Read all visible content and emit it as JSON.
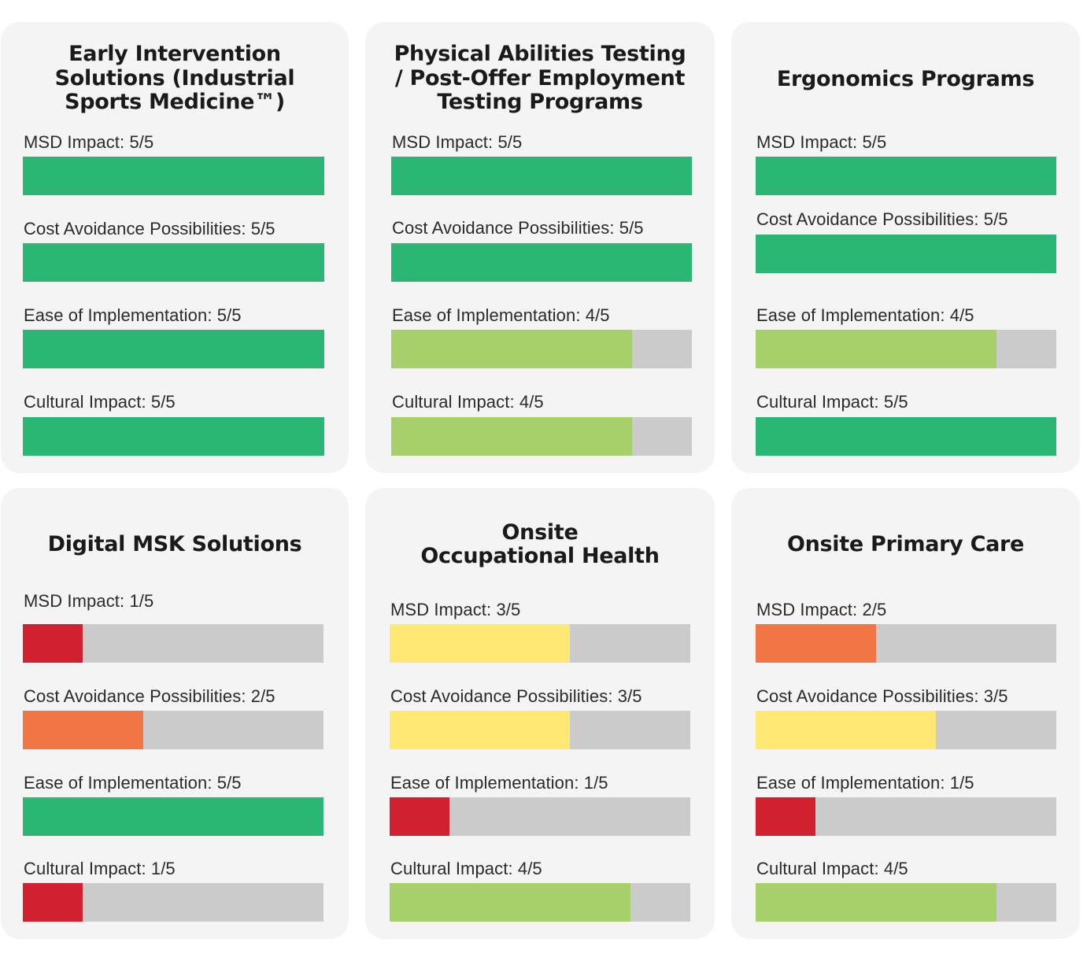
{
  "colors": {
    "score_1": "#d12131",
    "score_2": "#f27645",
    "score_3": "#fee773",
    "score_4": "#a5d06a",
    "score_5": "#2bb673",
    "track": "#cbcbcb",
    "card": "#f4f4f4"
  },
  "chart_data": {
    "type": "bar",
    "orientation": "horizontal",
    "scale_max": 5,
    "categories": [
      "MSD Impact",
      "Cost Avoidance Possibilities",
      "Ease of Implementation",
      "Cultural Impact"
    ],
    "cards": [
      {
        "title": "Early Intervention\nSolutions (Industrial\nSports Medicine™)",
        "metrics": [
          {
            "label": "MSD Impact: 5/5",
            "value": 5
          },
          {
            "label": "Cost Avoidance Possibilities: 5/5",
            "value": 5
          },
          {
            "label": "Ease of Implementation: 5/5",
            "value": 5
          },
          {
            "label": "Cultural Impact: 5/5",
            "value": 5
          }
        ]
      },
      {
        "title": "Physical Abilities Testing\n/ Post-Offer Employment\nTesting Programs",
        "metrics": [
          {
            "label": "MSD Impact: 5/5",
            "value": 5
          },
          {
            "label": "Cost Avoidance Possibilities: 5/5",
            "value": 5
          },
          {
            "label": "Ease of Implementation: 4/5",
            "value": 4
          },
          {
            "label": "Cultural Impact: 4/5",
            "value": 4
          }
        ]
      },
      {
        "title": "Ergonomics Programs",
        "metrics": [
          {
            "label": "MSD Impact: 5/5",
            "value": 5
          },
          {
            "label": "Cost Avoidance Possibilities: 5/5",
            "value": 5
          },
          {
            "label": "Ease of Implementation: 4/5",
            "value": 4
          },
          {
            "label": "Cultural Impact: 5/5",
            "value": 5
          }
        ]
      },
      {
        "title": "Digital MSK Solutions",
        "metrics": [
          {
            "label": "MSD Impact: 1/5",
            "value": 1
          },
          {
            "label": "Cost Avoidance Possibilities: 2/5",
            "value": 2
          },
          {
            "label": "Ease of Implementation: 5/5",
            "value": 5
          },
          {
            "label": "Cultural Impact: 1/5",
            "value": 1
          }
        ]
      },
      {
        "title": "Onsite\nOccupational Health",
        "metrics": [
          {
            "label": "MSD Impact: 3/5",
            "value": 3
          },
          {
            "label": "Cost Avoidance Possibilities: 3/5",
            "value": 3
          },
          {
            "label": "Ease of Implementation: 1/5",
            "value": 1
          },
          {
            "label": "Cultural Impact: 4/5",
            "value": 4
          }
        ]
      },
      {
        "title": "Onsite Primary Care",
        "metrics": [
          {
            "label": "MSD Impact: 2/5",
            "value": 2
          },
          {
            "label": "Cost Avoidance Possibilities: 3/5",
            "value": 3
          },
          {
            "label": "Ease of Implementation: 1/5",
            "value": 1
          },
          {
            "label": "Cultural Impact: 4/5",
            "value": 4
          }
        ]
      }
    ]
  }
}
